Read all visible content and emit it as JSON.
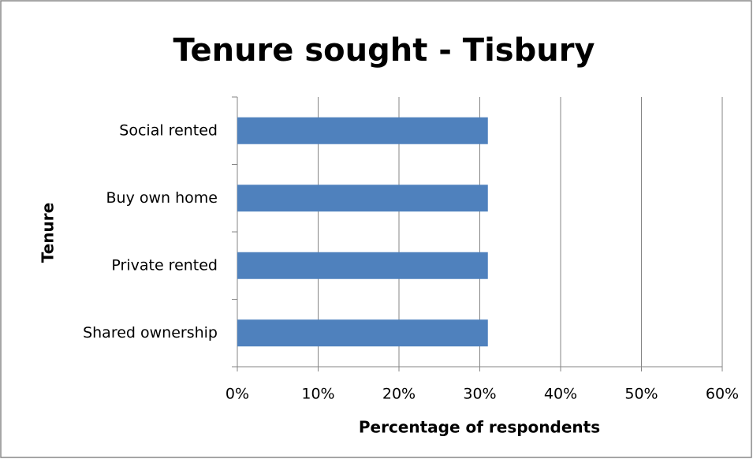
{
  "chart_data": {
    "type": "bar",
    "orientation": "horizontal",
    "title": "Tenure sought - Tisbury",
    "x_label": "Percentage of respondents",
    "y_label": "Tenure",
    "categories": [
      "Social rented",
      "Buy own home",
      "Private rented",
      "Shared ownership"
    ],
    "values": [
      31,
      31,
      31,
      31
    ],
    "color": "#4f81bd",
    "xlim": [
      0,
      60
    ],
    "xticks": [
      {
        "value": 0,
        "label": "0%"
      },
      {
        "value": 10,
        "label": "10%"
      },
      {
        "value": 20,
        "label": "20%"
      },
      {
        "value": 30,
        "label": "30%"
      },
      {
        "value": 40,
        "label": "40%"
      },
      {
        "value": 50,
        "label": "50%"
      },
      {
        "value": 60,
        "label": "60%"
      }
    ],
    "grid": true
  }
}
